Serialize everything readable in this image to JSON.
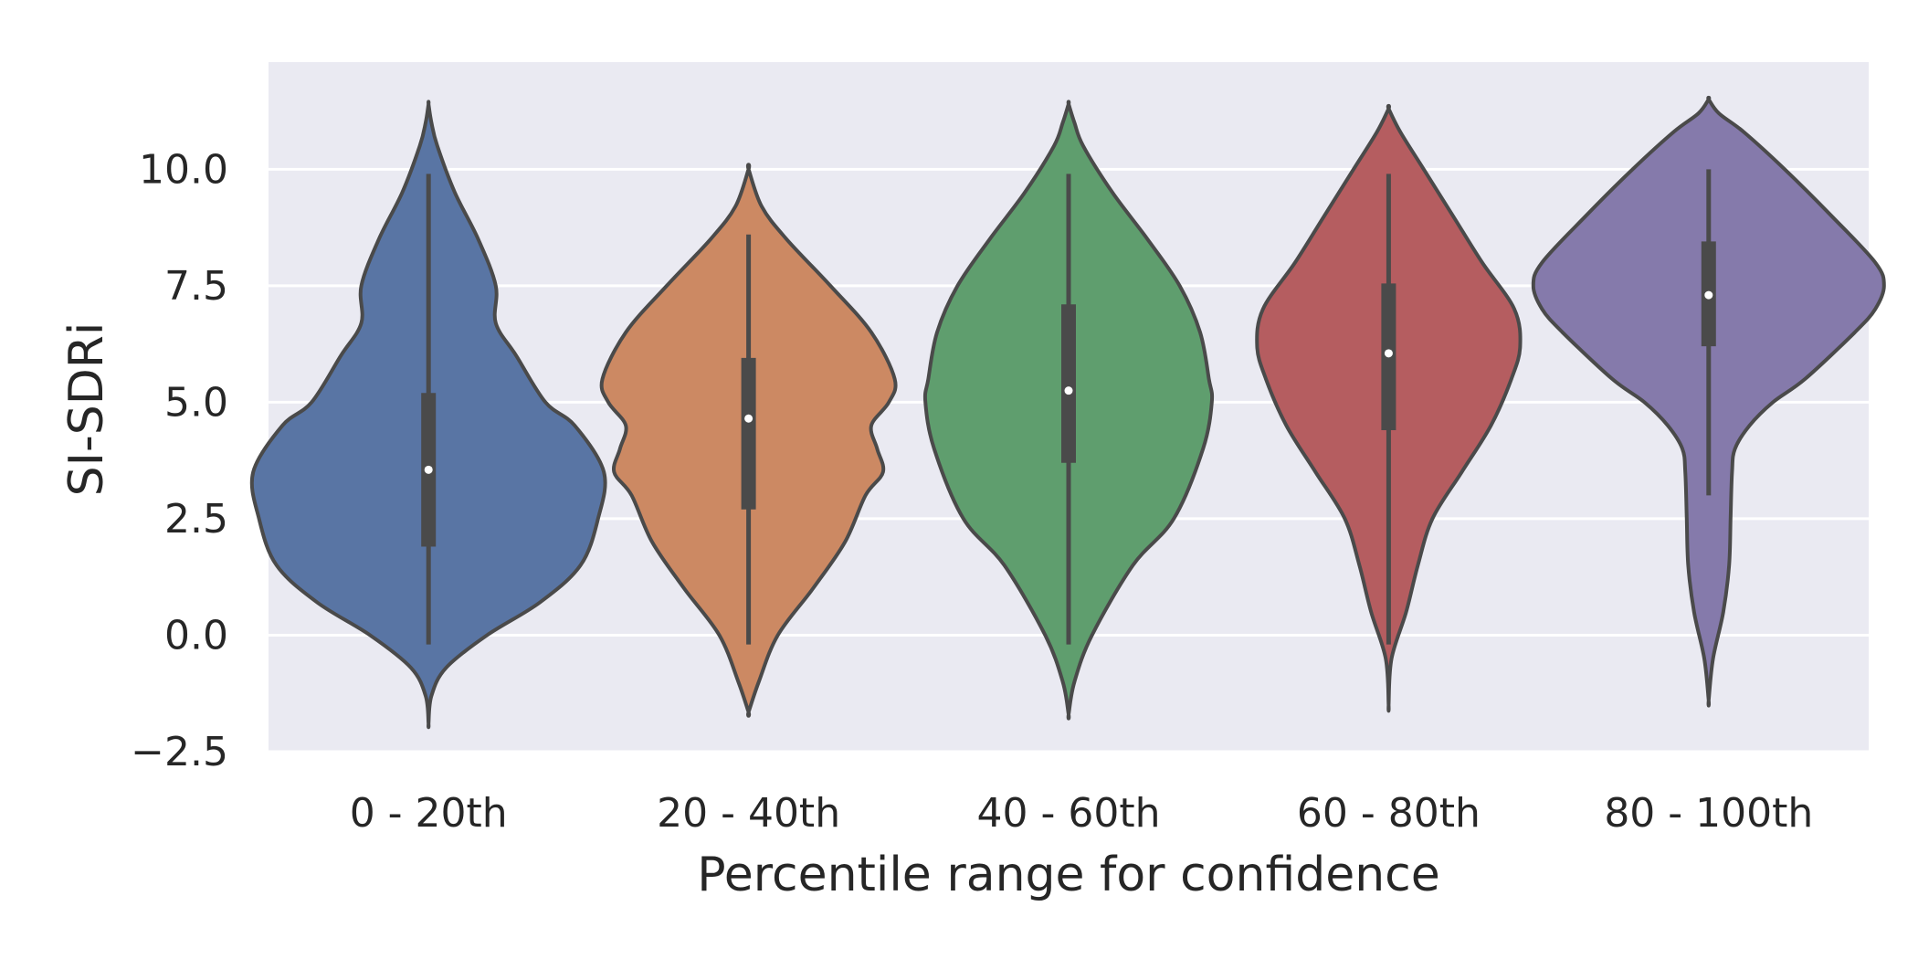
{
  "chart_data": {
    "type": "violin",
    "title": "",
    "xlabel": "Percentile range for confidence",
    "ylabel": "SI-SDRi",
    "ylim": [
      -2.5,
      12.3
    ],
    "yticks": [
      -2.5,
      0.0,
      2.5,
      5.0,
      7.5,
      10.0
    ],
    "ytick_labels": [
      "−2.5",
      "0.0",
      "2.5",
      "5.0",
      "7.5",
      "10.0"
    ],
    "grid": true,
    "legend": "none",
    "categories": [
      "0 - 20th",
      "20 - 40th",
      "40 - 60th",
      "60 - 80th",
      "80 - 100th"
    ],
    "colors": [
      "#5975a4",
      "#cc8963",
      "#5f9e6e",
      "#b55d60",
      "#857aab"
    ],
    "background": "#eaeaf2",
    "outline_color": "#4a4a4a",
    "violins": [
      {
        "category": "0 - 20th",
        "min": -1.9,
        "max": 11.4,
        "whisker_low": -0.2,
        "whisker_high": 9.9,
        "q1": 1.9,
        "median": 3.55,
        "q3": 5.2,
        "density": [
          [
            -1.9,
            0.0
          ],
          [
            -1.3,
            0.1
          ],
          [
            -0.7,
            0.6
          ],
          [
            0.0,
            2.0
          ],
          [
            0.7,
            3.8
          ],
          [
            1.5,
            5.2
          ],
          [
            2.5,
            5.8
          ],
          [
            3.5,
            6.0
          ],
          [
            4.5,
            5.0
          ],
          [
            5.0,
            4.0
          ],
          [
            6.0,
            3.0
          ],
          [
            6.7,
            2.3
          ],
          [
            7.5,
            2.3
          ],
          [
            8.5,
            1.7
          ],
          [
            9.5,
            0.9
          ],
          [
            10.5,
            0.3
          ],
          [
            11.0,
            0.1
          ],
          [
            11.4,
            0.0
          ]
        ]
      },
      {
        "category": "20 - 40th",
        "min": -1.65,
        "max": 10.0,
        "whisker_low": -0.2,
        "whisker_high": 8.6,
        "q1": 2.7,
        "median": 4.65,
        "q3": 5.95,
        "density": [
          [
            -1.65,
            0.0
          ],
          [
            -1.0,
            0.35
          ],
          [
            0.0,
            1.0
          ],
          [
            1.0,
            2.2
          ],
          [
            2.0,
            3.3
          ],
          [
            3.0,
            4.0
          ],
          [
            3.5,
            4.6
          ],
          [
            4.0,
            4.4
          ],
          [
            4.5,
            4.2
          ],
          [
            5.0,
            4.8
          ],
          [
            5.5,
            5.0
          ],
          [
            6.5,
            4.2
          ],
          [
            7.5,
            2.8
          ],
          [
            8.5,
            1.3
          ],
          [
            9.2,
            0.45
          ],
          [
            10.0,
            0.0
          ]
        ]
      },
      {
        "category": "40 - 60th",
        "min": -1.7,
        "max": 11.4,
        "whisker_low": -0.2,
        "whisker_high": 9.9,
        "q1": 3.7,
        "median": 5.25,
        "q3": 7.1,
        "density": [
          [
            -1.7,
            0.0
          ],
          [
            -1.0,
            0.2
          ],
          [
            0.0,
            0.8
          ],
          [
            1.5,
            2.2
          ],
          [
            2.5,
            3.6
          ],
          [
            4.0,
            4.6
          ],
          [
            5.0,
            4.9
          ],
          [
            5.5,
            4.8
          ],
          [
            6.5,
            4.5
          ],
          [
            7.5,
            3.8
          ],
          [
            8.5,
            2.7
          ],
          [
            9.5,
            1.5
          ],
          [
            10.5,
            0.5
          ],
          [
            11.0,
            0.2
          ],
          [
            11.4,
            0.0
          ]
        ]
      },
      {
        "category": "60 - 80th",
        "min": -1.5,
        "max": 11.3,
        "whisker_low": -0.2,
        "whisker_high": 9.9,
        "q1": 4.4,
        "median": 6.05,
        "q3": 7.55,
        "density": [
          [
            -1.5,
            0.0
          ],
          [
            -0.5,
            0.1
          ],
          [
            0.5,
            0.6
          ],
          [
            1.5,
            1.0
          ],
          [
            2.5,
            1.5
          ],
          [
            3.5,
            2.5
          ],
          [
            4.5,
            3.5
          ],
          [
            5.5,
            4.2
          ],
          [
            6.2,
            4.5
          ],
          [
            7.0,
            4.3
          ],
          [
            8.0,
            3.2
          ],
          [
            9.0,
            2.2
          ],
          [
            10.0,
            1.2
          ],
          [
            10.8,
            0.4
          ],
          [
            11.3,
            0.0
          ]
        ]
      },
      {
        "category": "80 - 100th",
        "min": -1.4,
        "max": 11.5,
        "whisker_low": 3.0,
        "whisker_high": 10.0,
        "q1": 6.2,
        "median": 7.3,
        "q3": 8.45,
        "density": [
          [
            -1.4,
            0.0
          ],
          [
            -0.5,
            0.15
          ],
          [
            0.5,
            0.5
          ],
          [
            1.5,
            0.7
          ],
          [
            2.5,
            0.75
          ],
          [
            3.5,
            0.8
          ],
          [
            4.0,
            0.9
          ],
          [
            4.5,
            1.4
          ],
          [
            5.0,
            2.2
          ],
          [
            5.5,
            3.3
          ],
          [
            6.5,
            5.0
          ],
          [
            7.0,
            5.7
          ],
          [
            7.5,
            6.0
          ],
          [
            8.0,
            5.7
          ],
          [
            9.0,
            4.2
          ],
          [
            10.0,
            2.6
          ],
          [
            10.8,
            1.2
          ],
          [
            11.2,
            0.35
          ],
          [
            11.5,
            0.0
          ]
        ]
      }
    ]
  }
}
